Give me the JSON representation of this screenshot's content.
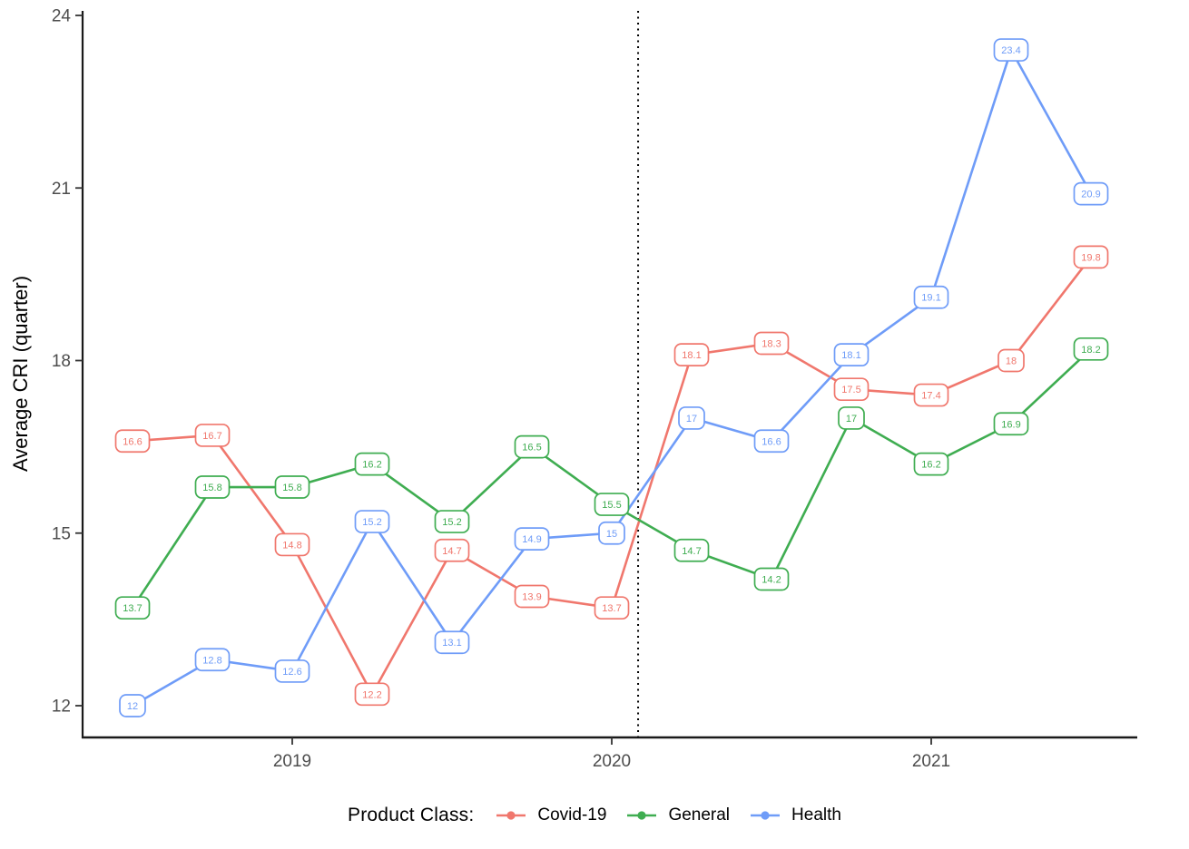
{
  "page": {
    "background": "#ffffff"
  },
  "axis_style": {
    "axis_line_color": "#1a1a1a",
    "tick_label_color": "#4d4d4d",
    "axis_title_color": "#000000"
  },
  "chart_data": {
    "type": "line",
    "title": "",
    "xlabel": "",
    "ylabel": "Average CRI (quarter)",
    "categories": [
      "2018 Q3",
      "2018 Q4",
      "2019 Q1",
      "2019 Q2",
      "2019 Q3",
      "2019 Q4",
      "2020 Q1",
      "2020 Q2",
      "2020 Q3",
      "2020 Q4",
      "2021 Q1",
      "2021 Q2",
      "2021 Q3"
    ],
    "x_axis_tick_labels": [
      {
        "label": "2019",
        "index": 2
      },
      {
        "label": "2020",
        "index": 6
      },
      {
        "label": "2021",
        "index": 10
      }
    ],
    "ylim": [
      12,
      24
    ],
    "yticks": [
      12,
      15,
      18,
      21,
      24
    ],
    "grid": false,
    "point_labels_shown": true,
    "reference_line": {
      "orientation": "vertical",
      "style": "dotted",
      "color": "#000000",
      "x_index": 6.33
    },
    "legend": {
      "title": "Product Class:",
      "position": "bottom"
    },
    "series": [
      {
        "name": "Covid-19",
        "color": "#F0776D",
        "values": [
          16.6,
          16.7,
          14.8,
          12.2,
          14.7,
          13.9,
          13.7,
          18.1,
          18.3,
          17.5,
          17.4,
          18,
          19.8
        ]
      },
      {
        "name": "General",
        "color": "#3FAD51",
        "values": [
          13.7,
          15.8,
          15.8,
          16.2,
          15.2,
          16.5,
          15.5,
          14.7,
          14.2,
          17,
          16.2,
          16.9,
          18.2
        ]
      },
      {
        "name": "Health",
        "color": "#6F9CF8",
        "values": [
          12,
          12.8,
          12.6,
          15.2,
          13.1,
          14.9,
          15,
          17,
          16.6,
          18.1,
          19.1,
          23.4,
          20.9
        ]
      }
    ]
  }
}
